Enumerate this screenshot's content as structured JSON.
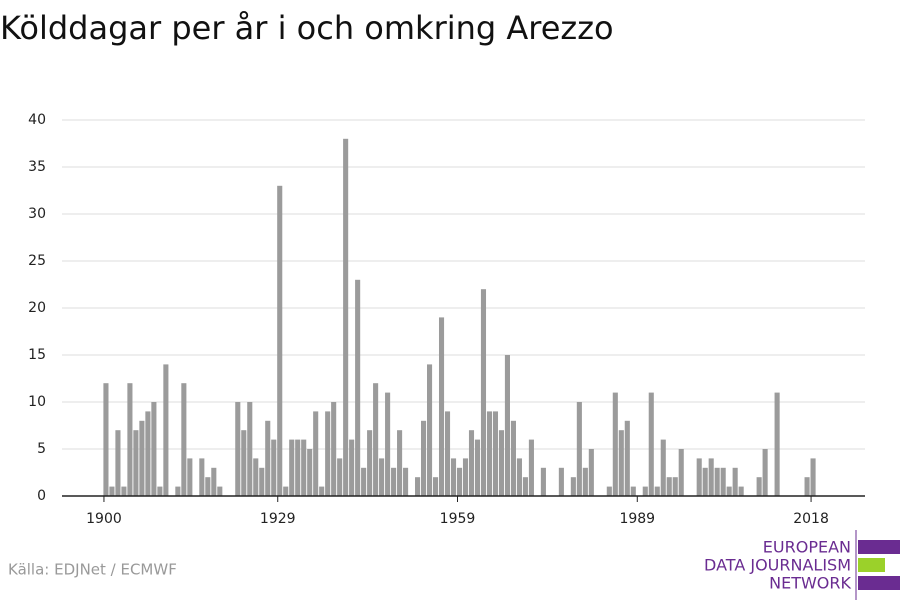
{
  "chart_data": {
    "type": "bar",
    "title": "Kölddagar per år i och omkring Arezzo",
    "x": [
      1900,
      1901,
      1902,
      1903,
      1904,
      1905,
      1906,
      1907,
      1908,
      1909,
      1910,
      1911,
      1912,
      1913,
      1914,
      1915,
      1916,
      1917,
      1918,
      1919,
      1920,
      1921,
      1922,
      1923,
      1924,
      1925,
      1926,
      1927,
      1928,
      1929,
      1930,
      1931,
      1932,
      1933,
      1934,
      1935,
      1936,
      1937,
      1938,
      1939,
      1940,
      1941,
      1942,
      1943,
      1944,
      1945,
      1946,
      1947,
      1948,
      1949,
      1950,
      1951,
      1952,
      1953,
      1954,
      1955,
      1956,
      1957,
      1958,
      1959,
      1960,
      1961,
      1962,
      1963,
      1964,
      1965,
      1966,
      1967,
      1968,
      1969,
      1970,
      1971,
      1972,
      1973,
      1974,
      1975,
      1976,
      1977,
      1978,
      1979,
      1980,
      1981,
      1982,
      1983,
      1984,
      1985,
      1986,
      1987,
      1988,
      1989,
      1990,
      1991,
      1992,
      1993,
      1994,
      1995,
      1996,
      1997,
      1998,
      1999,
      2000,
      2001,
      2002,
      2003,
      2004,
      2005,
      2006,
      2007,
      2008,
      2009,
      2010,
      2011,
      2012,
      2013,
      2014,
      2015,
      2016,
      2017,
      2018
    ],
    "values": [
      12,
      1,
      7,
      1,
      12,
      7,
      8,
      9,
      10,
      1,
      14,
      0,
      1,
      12,
      4,
      0,
      4,
      2,
      3,
      1,
      0,
      0,
      10,
      7,
      10,
      4,
      3,
      8,
      6,
      33,
      1,
      6,
      6,
      6,
      5,
      9,
      1,
      9,
      10,
      4,
      38,
      6,
      23,
      3,
      7,
      12,
      4,
      11,
      3,
      7,
      3,
      0,
      2,
      8,
      14,
      2,
      19,
      9,
      4,
      3,
      4,
      7,
      6,
      22,
      9,
      9,
      7,
      15,
      8,
      4,
      2,
      6,
      0,
      3,
      0,
      0,
      3,
      0,
      2,
      10,
      3,
      5,
      0,
      0,
      1,
      11,
      7,
      8,
      1,
      0,
      1,
      11,
      1,
      6,
      2,
      2,
      5,
      0,
      0,
      4,
      3,
      4,
      3,
      3,
      1,
      3,
      1,
      0,
      0,
      2,
      5,
      0,
      11,
      0,
      0,
      0,
      0,
      2,
      4
    ],
    "color": "#9b9b9b",
    "xlim": [
      1893,
      2027
    ],
    "xticks": [
      1900,
      1929,
      1959,
      1989,
      2018
    ],
    "ylim": [
      0,
      40
    ],
    "yticks": [
      0,
      5,
      10,
      15,
      20,
      25,
      30,
      35,
      40
    ],
    "grid": true
  },
  "source": "Källa: EDJNet / ECMWF",
  "logo": [
    "EUROPEAN",
    "DATA JOURNALISM",
    "NETWORK"
  ]
}
